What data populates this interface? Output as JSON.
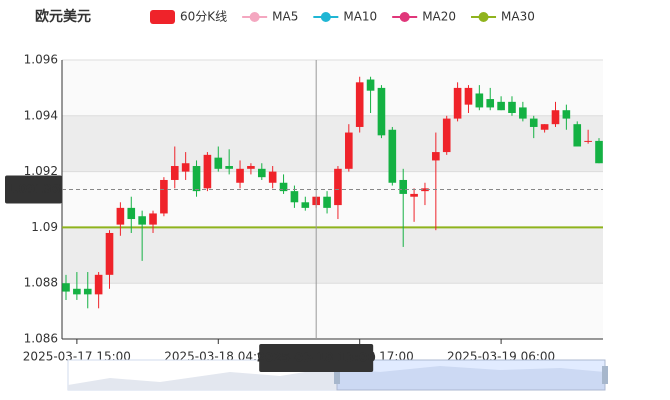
{
  "chart_data": {
    "type": "candlestick",
    "title": "欧元美元",
    "legend": [
      {
        "name": "60分K线",
        "color": "#ef232a"
      },
      {
        "name": "MA5",
        "color": "#f4a7c0"
      },
      {
        "name": "MA10",
        "color": "#1fb6d4"
      },
      {
        "name": "MA20",
        "color": "#e0367a"
      },
      {
        "name": "MA30",
        "color": "#8fb31d"
      }
    ],
    "up_color": "#ef232a",
    "down_color": "#14b143",
    "categories": [
      "2025-03-17 14:00",
      "2025-03-17 15:00",
      "2025-03-17 16:00",
      "2025-03-17 17:00",
      "2025-03-17 18:00",
      "2025-03-17 19:00",
      "2025-03-17 20:00",
      "2025-03-17 21:00",
      "2025-03-17 22:00",
      "2025-03-17 23:00",
      "2025-03-18 00:00",
      "2025-03-18 01:00",
      "2025-03-18 02:00",
      "2025-03-18 03:00",
      "2025-03-18 04:00",
      "2025-03-18 05:00",
      "2025-03-18 06:00",
      "2025-03-18 07:00",
      "2025-03-18 08:00",
      "2025-03-18 09:00",
      "2025-03-18 10:00",
      "2025-03-18 11:00",
      "2025-03-18 12:00",
      "2025-03-18 13:00",
      "2025-03-18 14:00",
      "2025-03-18 15:00",
      "2025-03-18 16:00",
      "2025-03-18 17:00",
      "2025-03-18 18:00",
      "2025-03-18 19:00",
      "2025-03-18 20:00",
      "2025-03-18 21:00",
      "2025-03-18 22:00",
      "2025-03-18 23:00",
      "2025-03-19 00:00",
      "2025-03-19 01:00",
      "2025-03-19 02:00",
      "2025-03-19 03:00",
      "2025-03-19 04:00",
      "2025-03-19 05:00",
      "2025-03-19 06:00",
      "2025-03-19 07:00",
      "2025-03-19 08:00",
      "2025-03-19 09:00",
      "2025-03-19 10:00",
      "2025-03-19 11:00",
      "2025-03-19 12:00",
      "2025-03-19 13:00",
      "2025-03-19 14:00",
      "2025-03-19 15:00"
    ],
    "ohlc": [
      [
        1.088,
        1.0883,
        1.0874,
        1.0877
      ],
      [
        1.0878,
        1.0884,
        1.0874,
        1.0876
      ],
      [
        1.0878,
        1.0884,
        1.0871,
        1.0876
      ],
      [
        1.0876,
        1.0884,
        1.0871,
        1.0883
      ],
      [
        1.0883,
        1.0899,
        1.0878,
        1.0898
      ],
      [
        1.0901,
        1.0909,
        1.0897,
        1.0907
      ],
      [
        1.0907,
        1.0911,
        1.0898,
        1.0903
      ],
      [
        1.0904,
        1.0906,
        1.0888,
        1.0901
      ],
      [
        1.0901,
        1.0906,
        1.0898,
        1.0905
      ],
      [
        1.0905,
        1.0918,
        1.0904,
        1.0917
      ],
      [
        1.0917,
        1.0929,
        1.0914,
        1.0922
      ],
      [
        1.092,
        1.0927,
        1.0917,
        1.0923
      ],
      [
        1.0922,
        1.0924,
        1.0911,
        1.0913
      ],
      [
        1.0914,
        1.0927,
        1.0913,
        1.0926
      ],
      [
        1.0925,
        1.0929,
        1.092,
        1.0921
      ],
      [
        1.0922,
        1.0928,
        1.0919,
        1.0921
      ],
      [
        1.0916,
        1.0924,
        1.0914,
        1.0921
      ],
      [
        1.0921,
        1.0923,
        1.0919,
        1.0922
      ],
      [
        1.0921,
        1.0923,
        1.0917,
        1.0918
      ],
      [
        1.0916,
        1.0922,
        1.0914,
        1.092
      ],
      [
        1.0916,
        1.0919,
        1.0912,
        1.0913
      ],
      [
        1.0913,
        1.0915,
        1.0907,
        1.0909
      ],
      [
        1.0909,
        1.0911,
        1.0906,
        1.0907
      ],
      [
        1.0908,
        1.0911,
        1.0907,
        1.0911
      ],
      [
        1.0911,
        1.0913,
        1.0905,
        1.0907
      ],
      [
        1.0908,
        1.0922,
        1.0903,
        1.0921
      ],
      [
        1.0921,
        1.0937,
        1.092,
        1.0934
      ],
      [
        1.0936,
        1.0954,
        1.0934,
        1.0952
      ],
      [
        1.0953,
        1.0954,
        1.0941,
        1.0949
      ],
      [
        1.095,
        1.0951,
        1.0932,
        1.0933
      ],
      [
        1.0935,
        1.0936,
        1.0915,
        1.0916
      ],
      [
        1.0917,
        1.0921,
        1.0893,
        1.0912
      ],
      [
        1.0911,
        1.0914,
        1.0902,
        1.0912
      ],
      [
        1.0913,
        1.0916,
        1.0908,
        1.0914
      ],
      [
        1.0924,
        1.0934,
        1.0899,
        1.0927
      ],
      [
        1.0927,
        1.094,
        1.0926,
        1.0939
      ],
      [
        1.0939,
        1.0952,
        1.0938,
        1.095
      ],
      [
        1.0944,
        1.0951,
        1.0941,
        1.095
      ],
      [
        1.0948,
        1.0951,
        1.0942,
        1.0943
      ],
      [
        1.0946,
        1.095,
        1.0942,
        1.0943
      ],
      [
        1.0945,
        1.0947,
        1.0942,
        1.0942
      ],
      [
        1.0945,
        1.0947,
        1.094,
        1.0941
      ],
      [
        1.0943,
        1.0945,
        1.0938,
        1.0939
      ],
      [
        1.0939,
        1.094,
        1.0932,
        1.0936
      ],
      [
        1.0935,
        1.0937,
        1.0934,
        1.0937
      ],
      [
        1.0937,
        1.0945,
        1.0936,
        1.0942
      ],
      [
        1.0942,
        1.0944,
        1.0935,
        1.0939
      ],
      [
        1.0937,
        1.0938,
        1.0929,
        1.0929
      ],
      [
        1.0931,
        1.0935,
        1.093,
        1.0931
      ],
      [
        1.0931,
        1.0932,
        1.0923,
        1.0923
      ]
    ],
    "ylim": [
      1.086,
      1.096
    ],
    "yticks": [
      1.086,
      1.088,
      1.09,
      1.092,
      1.094,
      1.096
    ],
    "xtick_indices": [
      1,
      14,
      27,
      40
    ],
    "reference_line": {
      "value": 1.09,
      "color": "#8fb31d"
    },
    "pointer": {
      "x": "2025-03-18 13:00",
      "y": 1.09136
    }
  }
}
